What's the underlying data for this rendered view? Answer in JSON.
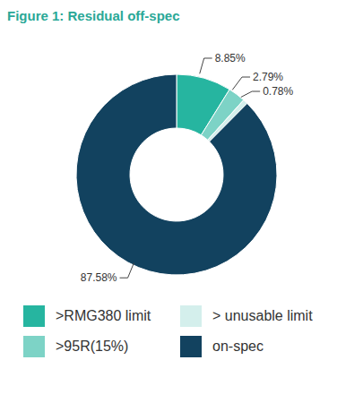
{
  "chart_data": {
    "type": "donut",
    "title": "Figure 1: Residual off-spec",
    "categories": [
      ">RMG380 limit",
      ">95R(15%)",
      "> unusable limit",
      "on-spec"
    ],
    "values": [
      8.85,
      2.79,
      0.78,
      87.58
    ],
    "value_labels": [
      "8.85%",
      "2.79%",
      "0.78%",
      "87.58%"
    ],
    "colors": [
      "#26b5a0",
      "#7dd3c6",
      "#d4efec",
      "#12425f"
    ],
    "data_labels": true,
    "legend": "bottom"
  }
}
